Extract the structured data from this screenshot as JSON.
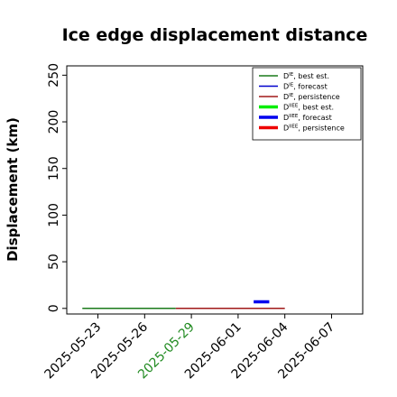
{
  "chart_data": {
    "type": "line",
    "title": "Ice edge displacement distance",
    "xlabel": "",
    "ylabel": "Displacement (km)",
    "xlim": [
      "2025-05-21",
      "2025-06-09"
    ],
    "ylim": [
      -6,
      260
    ],
    "x_ticks": [
      {
        "date": "2025-05-23",
        "label": "2025-05-23",
        "color": "#000000"
      },
      {
        "date": "2025-05-26",
        "label": "2025-05-26",
        "color": "#000000"
      },
      {
        "date": "2025-05-29",
        "label": "2025-05-29",
        "color": "#228b22"
      },
      {
        "date": "2025-06-01",
        "label": "2025-06-01",
        "color": "#000000"
      },
      {
        "date": "2025-06-04",
        "label": "2025-06-04",
        "color": "#000000"
      },
      {
        "date": "2025-06-07",
        "label": "2025-06-07",
        "color": "#000000"
      }
    ],
    "y_ticks": [
      0,
      50,
      100,
      150,
      200,
      250
    ],
    "grid": false,
    "legend_position": "top-right",
    "series": [
      {
        "name": "D^IE, best est.",
        "label_base": "D",
        "label_sup": "IE",
        "label_rest": ", best est.",
        "color": "#1a7a1a",
        "width": 1.5,
        "points": [
          [
            "2025-05-22",
            0
          ],
          [
            "2025-05-28",
            0
          ]
        ]
      },
      {
        "name": "D^IE, forecast",
        "label_base": "D",
        "label_sup": "IE",
        "label_rest": ", forecast",
        "color": "#0000cc",
        "width": 1.5,
        "points": []
      },
      {
        "name": "D^IE, persistence",
        "label_base": "D",
        "label_sup": "IE",
        "label_rest": ", persistence",
        "color": "#a01818",
        "width": 1.5,
        "points": [
          [
            "2025-05-28",
            0
          ],
          [
            "2025-06-04",
            0
          ]
        ]
      },
      {
        "name": "D^IIEE, best est.",
        "label_base": "D",
        "label_sup": "IIEE",
        "label_rest": ", best est.",
        "color": "#00ee00",
        "width": 3.5,
        "points": []
      },
      {
        "name": "D^IIEE, forecast",
        "label_base": "D",
        "label_sup": "IIEE",
        "label_rest": ", forecast",
        "color": "#0000ee",
        "width": 3.5,
        "points": [
          [
            "2025-06-02",
            7
          ],
          [
            "2025-06-03",
            7
          ]
        ]
      },
      {
        "name": "D^IIEE, persistence",
        "label_base": "D",
        "label_sup": "IIEE",
        "label_rest": ", persistence",
        "color": "#ee0000",
        "width": 3.5,
        "points": []
      }
    ]
  }
}
